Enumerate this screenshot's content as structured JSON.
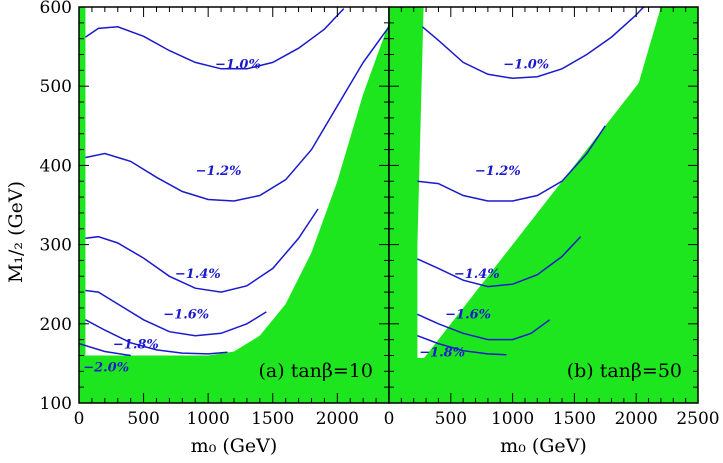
{
  "chart_data": [
    {
      "type": "contour",
      "panel_label": "(a) tanβ=10",
      "xlabel": "m₀ (GeV)",
      "ylabel": "M₁/₂ (GeV)",
      "xlim": [
        0,
        2400
      ],
      "ylim": [
        100,
        600
      ],
      "x_ticks": [
        0,
        500,
        1000,
        1500,
        2000
      ],
      "y_ticks": [
        100,
        200,
        300,
        400,
        500,
        600
      ],
      "excluded_color": "#1ee61e",
      "contour_color": "#1a1acc",
      "excluded_regions": [
        [
          [
            0,
            600
          ],
          [
            0,
            160
          ],
          [
            50,
            160
          ],
          [
            50,
            600
          ]
        ],
        [
          [
            0,
            160
          ],
          [
            0,
            100
          ],
          [
            2400,
            100
          ],
          [
            2400,
            580
          ],
          [
            2200,
            490
          ],
          [
            2000,
            380
          ],
          [
            1800,
            290
          ],
          [
            1600,
            225
          ],
          [
            1400,
            185
          ],
          [
            1200,
            165
          ],
          [
            1000,
            160
          ],
          [
            0,
            160
          ]
        ]
      ],
      "contours": [
        {
          "label": "−1.0%",
          "label_at": [
            1230,
            527
          ],
          "points": [
            [
              50,
              562
            ],
            [
              150,
              573
            ],
            [
              300,
              575
            ],
            [
              500,
              563
            ],
            [
              700,
              545
            ],
            [
              900,
              530
            ],
            [
              1100,
              522
            ],
            [
              1300,
              522
            ],
            [
              1500,
              530
            ],
            [
              1700,
              548
            ],
            [
              1900,
              572
            ],
            [
              2050,
              598
            ]
          ]
        },
        {
          "label": "−1.2%",
          "label_at": [
            1080,
            392
          ],
          "points": [
            [
              50,
              410
            ],
            [
              200,
              415
            ],
            [
              400,
              405
            ],
            [
              600,
              385
            ],
            [
              800,
              367
            ],
            [
              1000,
              357
            ],
            [
              1200,
              355
            ],
            [
              1400,
              362
            ],
            [
              1600,
              382
            ],
            [
              1800,
              420
            ],
            [
              2000,
              475
            ],
            [
              2200,
              530
            ],
            [
              2400,
              575
            ]
          ]
        },
        {
          "label": "−1.4%",
          "label_at": [
            920,
            262
          ],
          "points": [
            [
              50,
              308
            ],
            [
              150,
              310
            ],
            [
              300,
              302
            ],
            [
              500,
              283
            ],
            [
              700,
              260
            ],
            [
              900,
              245
            ],
            [
              1100,
              240
            ],
            [
              1300,
              248
            ],
            [
              1500,
              270
            ],
            [
              1700,
              308
            ],
            [
              1850,
              345
            ]
          ]
        },
        {
          "label": "−1.6%",
          "label_at": [
            830,
            211
          ],
          "points": [
            [
              50,
              242
            ],
            [
              150,
              240
            ],
            [
              300,
              225
            ],
            [
              500,
              205
            ],
            [
              700,
              190
            ],
            [
              900,
              185
            ],
            [
              1100,
              188
            ],
            [
              1300,
              200
            ],
            [
              1450,
              215
            ]
          ]
        },
        {
          "label": "−1.8%",
          "label_at": [
            440,
            173
          ],
          "points": [
            [
              50,
              205
            ],
            [
              200,
              192
            ],
            [
              400,
              176
            ],
            [
              600,
              167
            ],
            [
              800,
              163
            ],
            [
              1000,
              162
            ],
            [
              1150,
              164
            ]
          ]
        },
        {
          "label": "−2.0%",
          "label_at": [
            210,
            144
          ],
          "points": [
            [
              0,
              175
            ],
            [
              200,
              165
            ],
            [
              400,
              160
            ]
          ]
        }
      ]
    },
    {
      "type": "contour",
      "panel_label": "(b) tanβ=50",
      "xlabel": "m₀ (GeV)",
      "ylabel": "",
      "xlim": [
        0,
        2500
      ],
      "ylim": [
        100,
        600
      ],
      "x_ticks": [
        0,
        500,
        1000,
        1500,
        2000,
        2500
      ],
      "y_ticks": [
        100,
        200,
        300,
        400,
        500,
        600
      ],
      "excluded_color": "#1ee61e",
      "contour_color": "#1a1acc",
      "excluded_regions": [
        [
          [
            0,
            600
          ],
          [
            0,
            100
          ],
          [
            2500,
            100
          ],
          [
            2500,
            600
          ],
          [
            2200,
            600
          ],
          [
            2050,
            520
          ],
          [
            1900,
            440
          ],
          [
            1700,
            340
          ],
          [
            1500,
            255
          ],
          [
            1300,
            205
          ],
          [
            1100,
            175
          ],
          [
            900,
            160
          ],
          [
            700,
            157
          ],
          [
            230,
            157
          ],
          [
            230,
            300
          ],
          [
            280,
            600
          ]
        ],
        [
          [
            0,
            100
          ],
          [
            2500,
            100
          ],
          [
            2500,
            600
          ]
        ]
      ],
      "contours": [
        {
          "label": "−1.0%",
          "label_at": [
            1110,
            527
          ],
          "points": [
            [
              270,
              575
            ],
            [
              400,
              558
            ],
            [
              600,
              530
            ],
            [
              800,
              515
            ],
            [
              1000,
              510
            ],
            [
              1200,
              512
            ],
            [
              1400,
              522
            ],
            [
              1600,
              540
            ],
            [
              1800,
              562
            ],
            [
              2000,
              590
            ],
            [
              2060,
              600
            ]
          ]
        },
        {
          "label": "−1.2%",
          "label_at": [
            880,
            392
          ],
          "points": [
            [
              230,
              380
            ],
            [
              400,
              377
            ],
            [
              600,
              362
            ],
            [
              800,
              355
            ],
            [
              1000,
              355
            ],
            [
              1200,
              362
            ],
            [
              1400,
              380
            ],
            [
              1600,
              415
            ],
            [
              1750,
              450
            ]
          ]
        },
        {
          "label": "−1.4%",
          "label_at": [
            710,
            262
          ],
          "points": [
            [
              230,
              282
            ],
            [
              400,
              270
            ],
            [
              600,
              255
            ],
            [
              800,
              247
            ],
            [
              1000,
              250
            ],
            [
              1200,
              262
            ],
            [
              1400,
              285
            ],
            [
              1550,
              310
            ]
          ]
        },
        {
          "label": "−1.6%",
          "label_at": [
            640,
            211
          ],
          "points": [
            [
              230,
              212
            ],
            [
              400,
              200
            ],
            [
              600,
              188
            ],
            [
              800,
              180
            ],
            [
              1000,
              180
            ],
            [
              1150,
              188
            ],
            [
              1300,
              205
            ]
          ]
        },
        {
          "label": "−1.8%",
          "label_at": [
            430,
            163
          ],
          "points": [
            [
              230,
              185
            ],
            [
              400,
              175
            ],
            [
              600,
              166
            ],
            [
              800,
              162
            ],
            [
              950,
              161
            ]
          ]
        }
      ]
    }
  ]
}
